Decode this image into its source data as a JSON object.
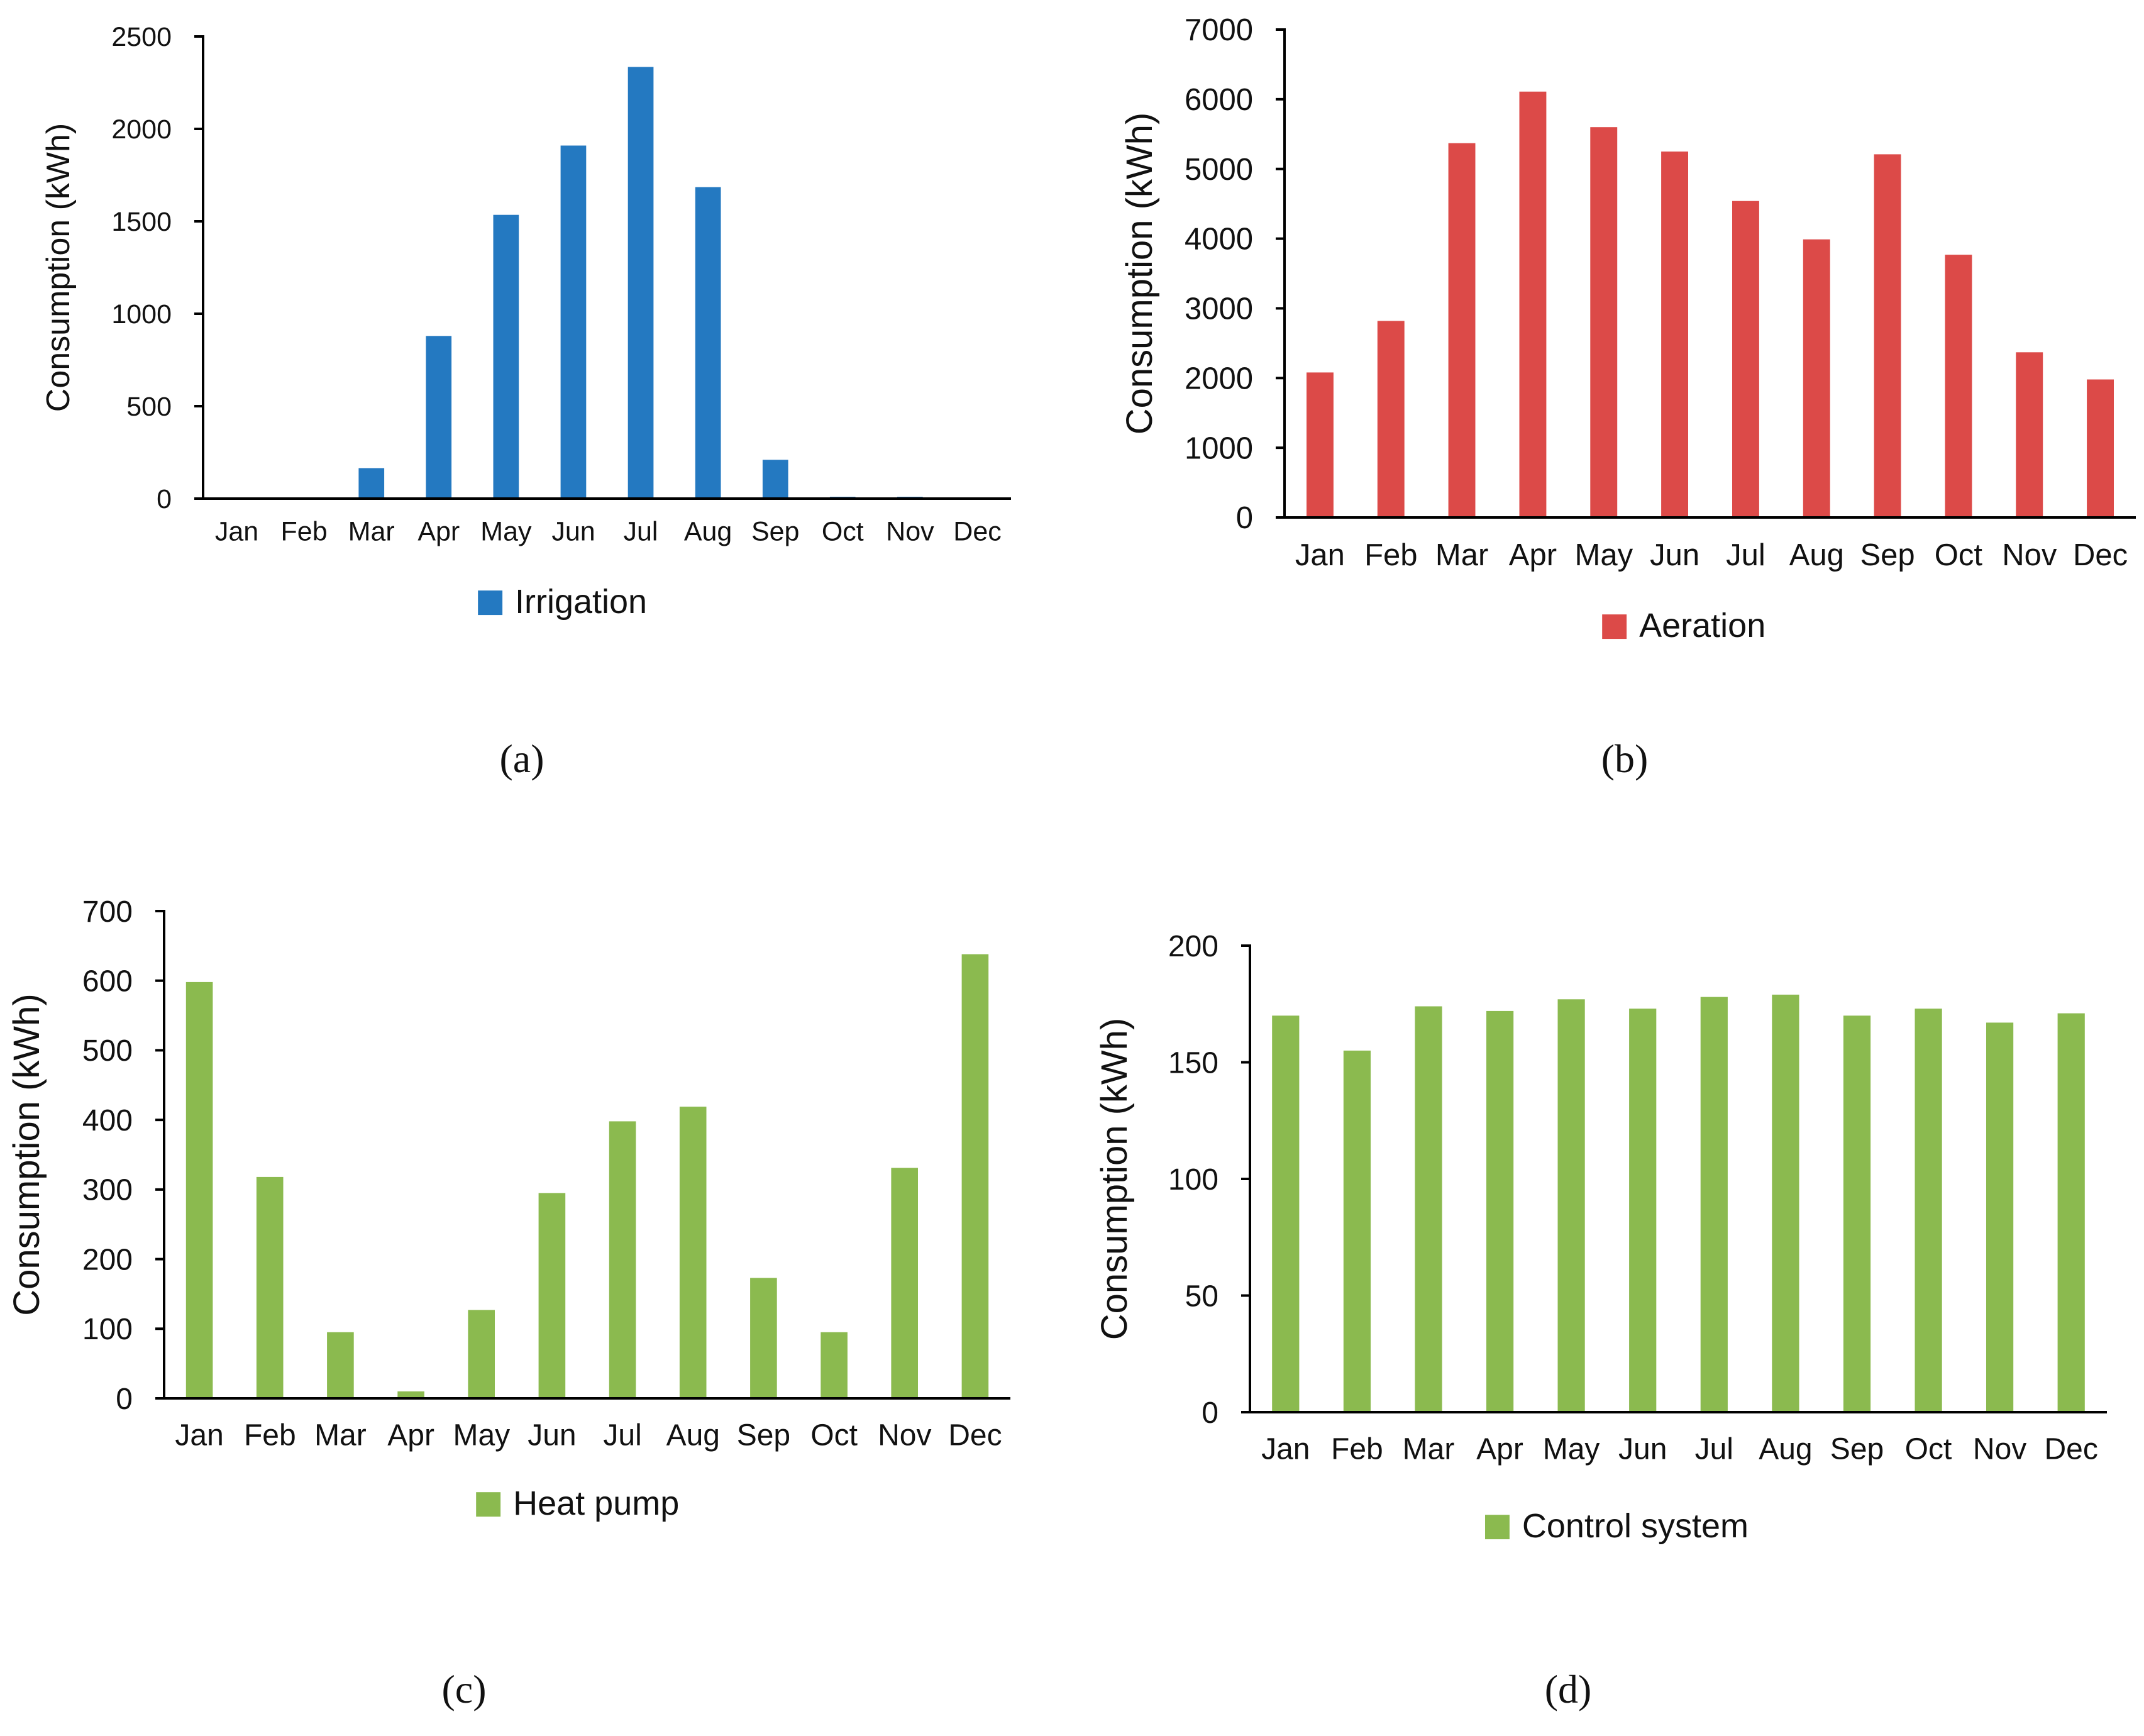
{
  "chart_data": [
    {
      "type": "bar",
      "panel_label": "(a)",
      "categories": [
        "Jan",
        "Feb",
        "Mar",
        "Apr",
        "May",
        "Jun",
        "Jul",
        "Aug",
        "Sep",
        "Oct",
        "Nov",
        "Dec"
      ],
      "series": [
        {
          "name": "Irrigation",
          "color": "#2479C1",
          "values": [
            0,
            0,
            165,
            880,
            1535,
            1910,
            2335,
            1685,
            210,
            10,
            10,
            0
          ]
        }
      ],
      "title": "",
      "xlabel": "",
      "ylabel": "Consumption (kWh)",
      "ylim": [
        0,
        2500
      ],
      "yticks": [
        0,
        500,
        1000,
        1500,
        2000,
        2500
      ],
      "grid": false,
      "legend": "bottom"
    },
    {
      "type": "bar",
      "panel_label": "(b)",
      "categories": [
        "Jan",
        "Feb",
        "Mar",
        "Apr",
        "May",
        "Jun",
        "Jul",
        "Aug",
        "Sep",
        "Oct",
        "Nov",
        "Dec"
      ],
      "series": [
        {
          "name": "Aeration",
          "color": "#DC4A48",
          "values": [
            2080,
            2820,
            5370,
            6110,
            5600,
            5250,
            4540,
            3990,
            5210,
            3770,
            2370,
            1980
          ]
        }
      ],
      "title": "",
      "xlabel": "",
      "ylabel": "Consumption (kWh)",
      "ylim": [
        0,
        7000
      ],
      "yticks": [
        0,
        1000,
        2000,
        3000,
        4000,
        5000,
        6000,
        7000
      ],
      "grid": false,
      "legend": "bottom"
    },
    {
      "type": "bar",
      "panel_label": "(c)",
      "categories": [
        "Jan",
        "Feb",
        "Mar",
        "Apr",
        "May",
        "Jun",
        "Jul",
        "Aug",
        "Sep",
        "Oct",
        "Nov",
        "Dec"
      ],
      "series": [
        {
          "name": "Heat pump",
          "color": "#8BBA4F",
          "values": [
            598,
            318,
            95,
            10,
            127,
            295,
            398,
            419,
            173,
            95,
            331,
            638
          ]
        }
      ],
      "title": "",
      "xlabel": "",
      "ylabel": "Consumption (kWh)",
      "ylim": [
        0,
        700
      ],
      "yticks": [
        0,
        100,
        200,
        300,
        400,
        500,
        600,
        700
      ],
      "grid": false,
      "legend": "bottom"
    },
    {
      "type": "bar",
      "panel_label": "(d)",
      "categories": [
        "Jan",
        "Feb",
        "Mar",
        "Apr",
        "May",
        "Jun",
        "Jul",
        "Aug",
        "Sep",
        "Oct",
        "Nov",
        "Dec"
      ],
      "series": [
        {
          "name": "Control system",
          "color": "#8BBA4F",
          "values": [
            170,
            155,
            174,
            172,
            177,
            173,
            178,
            179,
            170,
            173,
            167,
            171
          ]
        }
      ],
      "title": "",
      "xlabel": "",
      "ylabel": "Consumption (kWh)",
      "ylim": [
        0,
        200
      ],
      "yticks": [
        0,
        50,
        100,
        150,
        200
      ],
      "grid": false,
      "legend": "bottom"
    }
  ]
}
